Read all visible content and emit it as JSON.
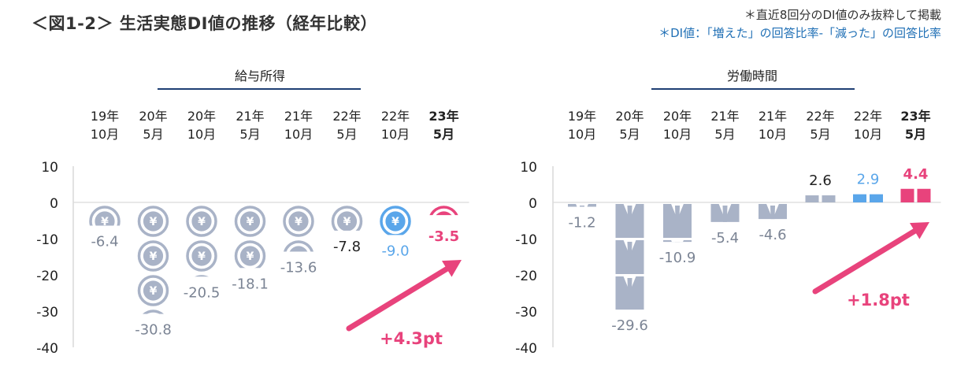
{
  "page": {
    "title": "＜図1-2＞ 生活実態DI値の推移（経年比較）",
    "note1": "＊直近8回分のDI値のみ抜粋して掲載",
    "note2": "＊DI値：「増えた」の回答比率-「減った」の回答比率"
  },
  "colors": {
    "gray": "#a9b3c7",
    "blue": "#5aa6ea",
    "pink": "#e8437c",
    "dark": "#222222",
    "axis": "#d9d9d9",
    "navy": "#1f3f73"
  },
  "chart_data": [
    {
      "type": "bar",
      "title": "給与所得",
      "icon": "yen-coin-icon",
      "categories": [
        [
          "19年",
          "10月"
        ],
        [
          "20年",
          "5月"
        ],
        [
          "20年",
          "10月"
        ],
        [
          "21年",
          "5月"
        ],
        [
          "21年",
          "10月"
        ],
        [
          "22年",
          "5月"
        ],
        [
          "22年",
          "10月"
        ],
        [
          "23年",
          "5月"
        ]
      ],
      "values": [
        -6.4,
        -30.8,
        -20.5,
        -18.1,
        -13.6,
        -7.8,
        -9.0,
        -3.5
      ],
      "labels": [
        "-6.4",
        "-30.8",
        "-20.5",
        "-18.1",
        "-13.6",
        "-7.8",
        "-9.0",
        "-3.5"
      ],
      "yticks": [
        "10",
        "0",
        "-10",
        "-20",
        "-30",
        "-40"
      ],
      "ylim": [
        -40,
        10
      ],
      "annotation": "+4.3pt"
    },
    {
      "type": "bar",
      "title": "労働時間",
      "icon": "shirt-tie-icon",
      "categories": [
        [
          "19年",
          "10月"
        ],
        [
          "20年",
          "5月"
        ],
        [
          "20年",
          "10月"
        ],
        [
          "21年",
          "5月"
        ],
        [
          "21年",
          "10月"
        ],
        [
          "22年",
          "5月"
        ],
        [
          "22年",
          "10月"
        ],
        [
          "23年",
          "5月"
        ]
      ],
      "values": [
        -1.2,
        -29.6,
        -10.9,
        -5.4,
        -4.6,
        2.6,
        2.9,
        4.4
      ],
      "labels": [
        "-1.2",
        "-29.6",
        "-10.9",
        "-5.4",
        "-4.6",
        "2.6",
        "2.9",
        "4.4"
      ],
      "yticks": [
        "10",
        "0",
        "-10",
        "-20",
        "-30",
        "-40"
      ],
      "ylim": [
        -40,
        10
      ],
      "annotation": "+1.8pt"
    }
  ]
}
